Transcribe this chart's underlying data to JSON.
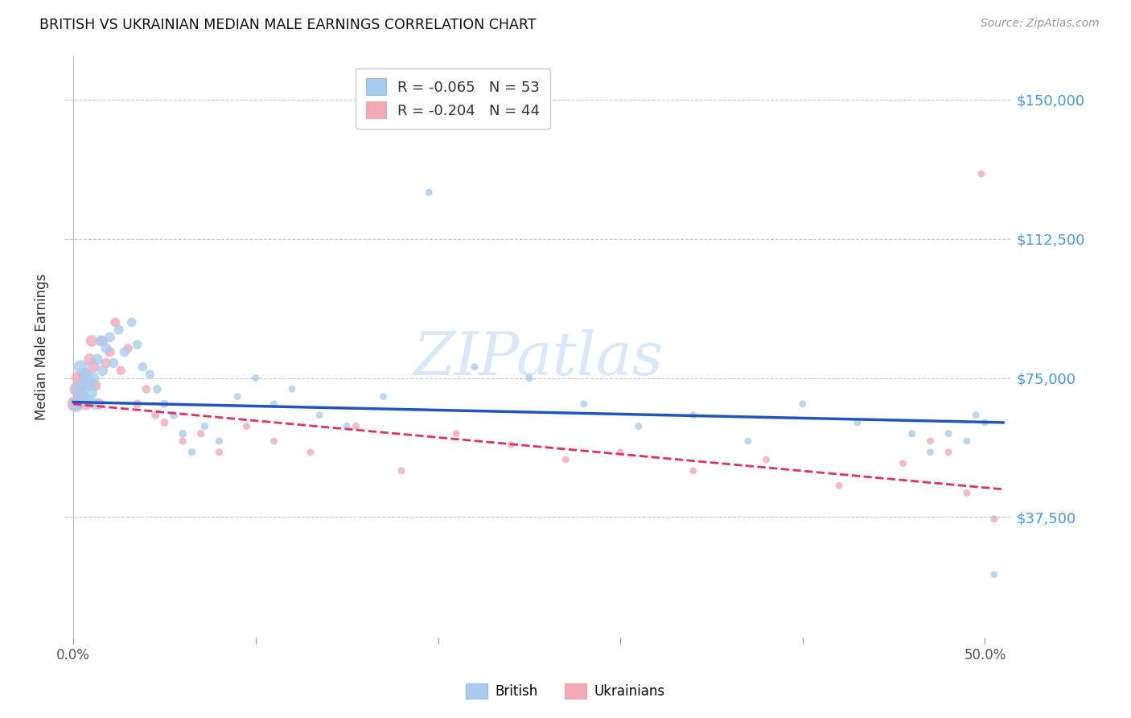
{
  "title": "BRITISH VS UKRAINIAN MEDIAN MALE EARNINGS CORRELATION CHART",
  "source": "Source: ZipAtlas.com",
  "ylabel": "Median Male Earnings",
  "ytick_labels": [
    "$150,000",
    "$112,500",
    "$75,000",
    "$37,500"
  ],
  "ytick_values": [
    150000,
    112500,
    75000,
    37500
  ],
  "ymin": 5000,
  "ymax": 162000,
  "xmin": -0.005,
  "xmax": 0.515,
  "watermark": "ZIPatlas",
  "british_R": -0.065,
  "british_N": 53,
  "ukrainian_R": -0.204,
  "ukrainian_N": 44,
  "british_color": "#A8CCF0",
  "ukrainian_color": "#F4A8B8",
  "trend_british_color": "#2255BB",
  "trend_ukrainian_color": "#E03060",
  "background_color": "#ffffff",
  "grid_color": "#cccccc",
  "brit_x": [
    0.002,
    0.003,
    0.004,
    0.005,
    0.006,
    0.007,
    0.008,
    0.009,
    0.01,
    0.011,
    0.012,
    0.013,
    0.015,
    0.016,
    0.018,
    0.02,
    0.022,
    0.025,
    0.028,
    0.032,
    0.035,
    0.038,
    0.042,
    0.046,
    0.05,
    0.055,
    0.06,
    0.065,
    0.072,
    0.08,
    0.09,
    0.1,
    0.11,
    0.12,
    0.135,
    0.15,
    0.17,
    0.195,
    0.22,
    0.25,
    0.28,
    0.31,
    0.34,
    0.37,
    0.4,
    0.43,
    0.46,
    0.47,
    0.48,
    0.49,
    0.495,
    0.5,
    0.505
  ],
  "brit_y": [
    68000,
    72000,
    78000,
    70000,
    74000,
    76000,
    69000,
    73000,
    71000,
    75000,
    68000,
    80000,
    85000,
    77000,
    83000,
    86000,
    79000,
    88000,
    82000,
    90000,
    84000,
    78000,
    76000,
    72000,
    68000,
    65000,
    60000,
    55000,
    62000,
    58000,
    70000,
    75000,
    68000,
    72000,
    65000,
    62000,
    70000,
    125000,
    78000,
    75000,
    68000,
    62000,
    65000,
    58000,
    68000,
    63000,
    60000,
    55000,
    60000,
    58000,
    65000,
    63000,
    22000
  ],
  "ukr_x": [
    0.001,
    0.002,
    0.003,
    0.004,
    0.005,
    0.006,
    0.007,
    0.008,
    0.009,
    0.01,
    0.011,
    0.012,
    0.014,
    0.016,
    0.018,
    0.02,
    0.023,
    0.026,
    0.03,
    0.035,
    0.04,
    0.045,
    0.05,
    0.06,
    0.07,
    0.08,
    0.095,
    0.11,
    0.13,
    0.155,
    0.18,
    0.21,
    0.24,
    0.27,
    0.3,
    0.34,
    0.38,
    0.42,
    0.455,
    0.47,
    0.48,
    0.49,
    0.498,
    0.505
  ],
  "ukr_y": [
    68000,
    72000,
    75000,
    70000,
    73000,
    76000,
    68000,
    74000,
    80000,
    85000,
    78000,
    73000,
    68000,
    85000,
    79000,
    82000,
    90000,
    77000,
    83000,
    68000,
    72000,
    65000,
    63000,
    58000,
    60000,
    55000,
    62000,
    58000,
    55000,
    62000,
    50000,
    60000,
    57000,
    53000,
    55000,
    50000,
    53000,
    46000,
    52000,
    58000,
    55000,
    44000,
    130000,
    37000
  ],
  "brit_sizes": [
    180,
    160,
    150,
    140,
    130,
    125,
    120,
    115,
    110,
    108,
    105,
    100,
    95,
    92,
    88,
    85,
    82,
    78,
    75,
    72,
    68,
    65,
    62,
    58,
    55,
    52,
    50,
    48,
    46,
    44,
    42,
    40,
    40,
    40,
    40,
    40,
    40,
    40,
    40,
    40,
    40,
    40,
    40,
    40,
    40,
    40,
    40,
    40,
    40,
    40,
    40,
    40,
    40
  ],
  "ukr_sizes": [
    200,
    175,
    160,
    150,
    140,
    130,
    125,
    118,
    112,
    108,
    104,
    100,
    95,
    90,
    85,
    80,
    75,
    70,
    65,
    60,
    55,
    52,
    50,
    46,
    44,
    42,
    40,
    40,
    40,
    40,
    40,
    40,
    40,
    40,
    40,
    40,
    40,
    40,
    40,
    40,
    40,
    40,
    40,
    40
  ]
}
